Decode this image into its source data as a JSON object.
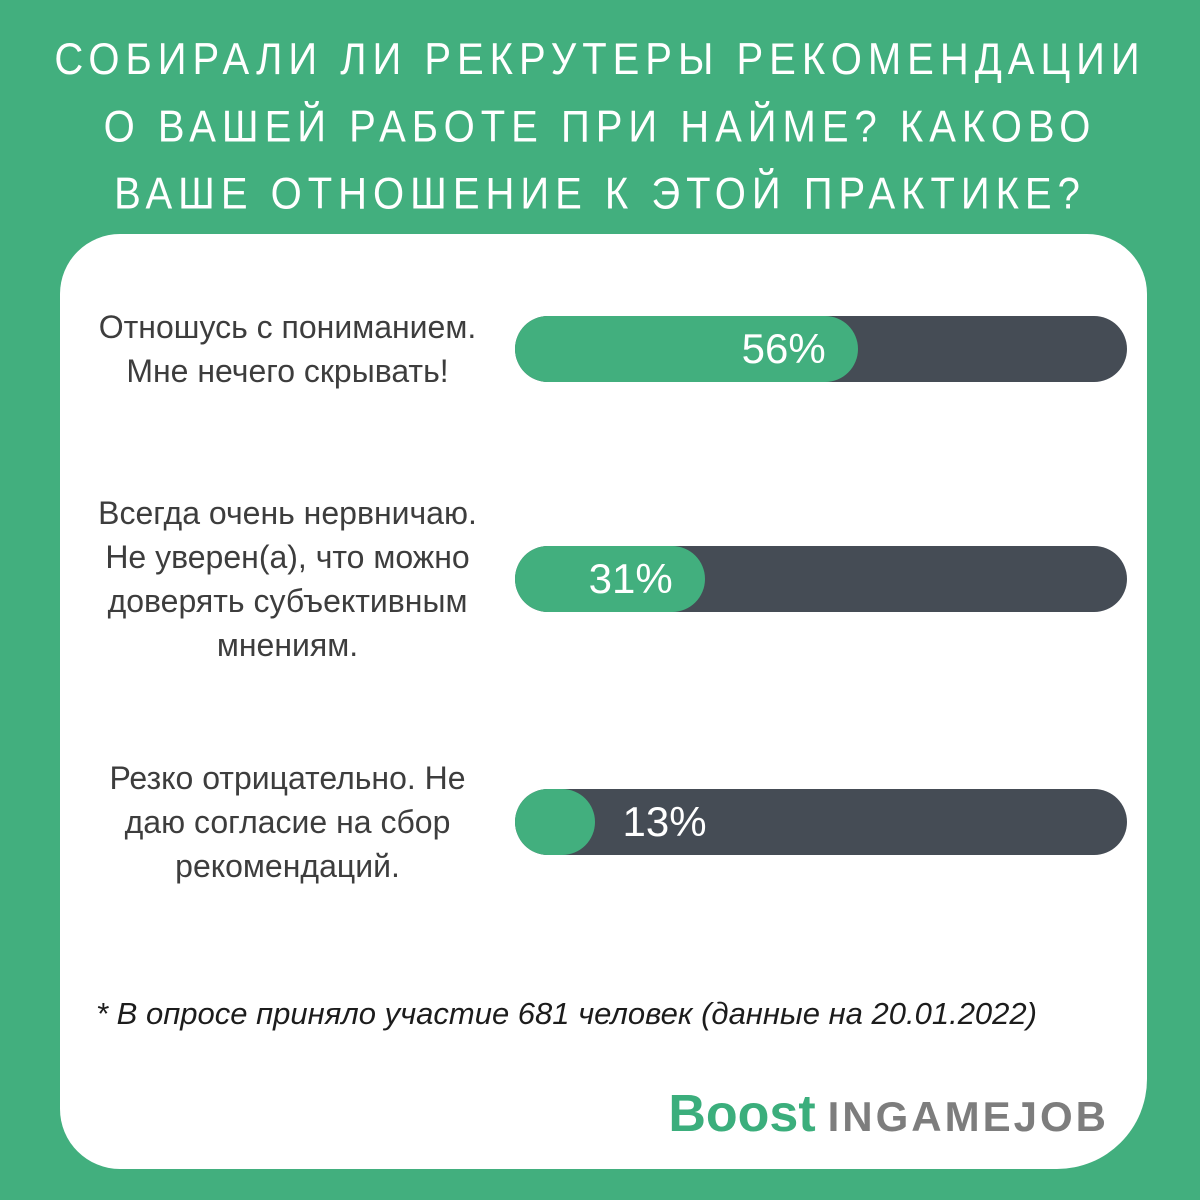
{
  "page": {
    "background_color": "#42AF7E",
    "card_color": "#FFFFFF"
  },
  "title": {
    "lines": [
      "СОБИРАЛИ ЛИ РЕКРУТЕРЫ РЕКОМЕНДАЦИИ",
      "О ВАШЕЙ РАБОТЕ ПРИ НАЙМЕ? КАКОВО",
      "ВАШЕ ОТНОШЕНИЕ К ЭТОЙ ПРАКТИКЕ?"
    ]
  },
  "chart_data": {
    "type": "bar",
    "orientation": "horizontal",
    "title": "СОБИРАЛИ ЛИ РЕКРУТЕРЫ РЕКОМЕНДАЦИИ О ВАШЕЙ РАБОТЕ ПРИ НАЙМЕ? КАКОВО ВАШЕ ОТНОШЕНИЕ К ЭТОЙ ПРАКТИКЕ?",
    "categories": [
      "Отношусь с пониманием.\nМне нечего скрывать!",
      "Всегда очень нервничаю.\nНе уверен(а), что можно\nдоверять субъективным\nмнениям.",
      "Резко отрицательно. Не\nдаю согласие на сбор\nрекомендаций."
    ],
    "values": [
      56,
      31,
      13
    ],
    "value_labels": [
      "56%",
      "31%",
      "13%"
    ],
    "xlim": [
      0,
      100
    ],
    "grid": false,
    "legend": false,
    "bar_fill_color": "#42AF7E",
    "bar_track_color": "#454C55",
    "value_label_color": "#FFFFFF"
  },
  "footnote": "* В опросе приняло участие 681 человек (данные на 20.01.2022)",
  "logo": {
    "primary": "Boost",
    "secondary": "INGAMEJOB",
    "primary_color": "#3BAE7C",
    "secondary_color": "#7D7D7D"
  }
}
